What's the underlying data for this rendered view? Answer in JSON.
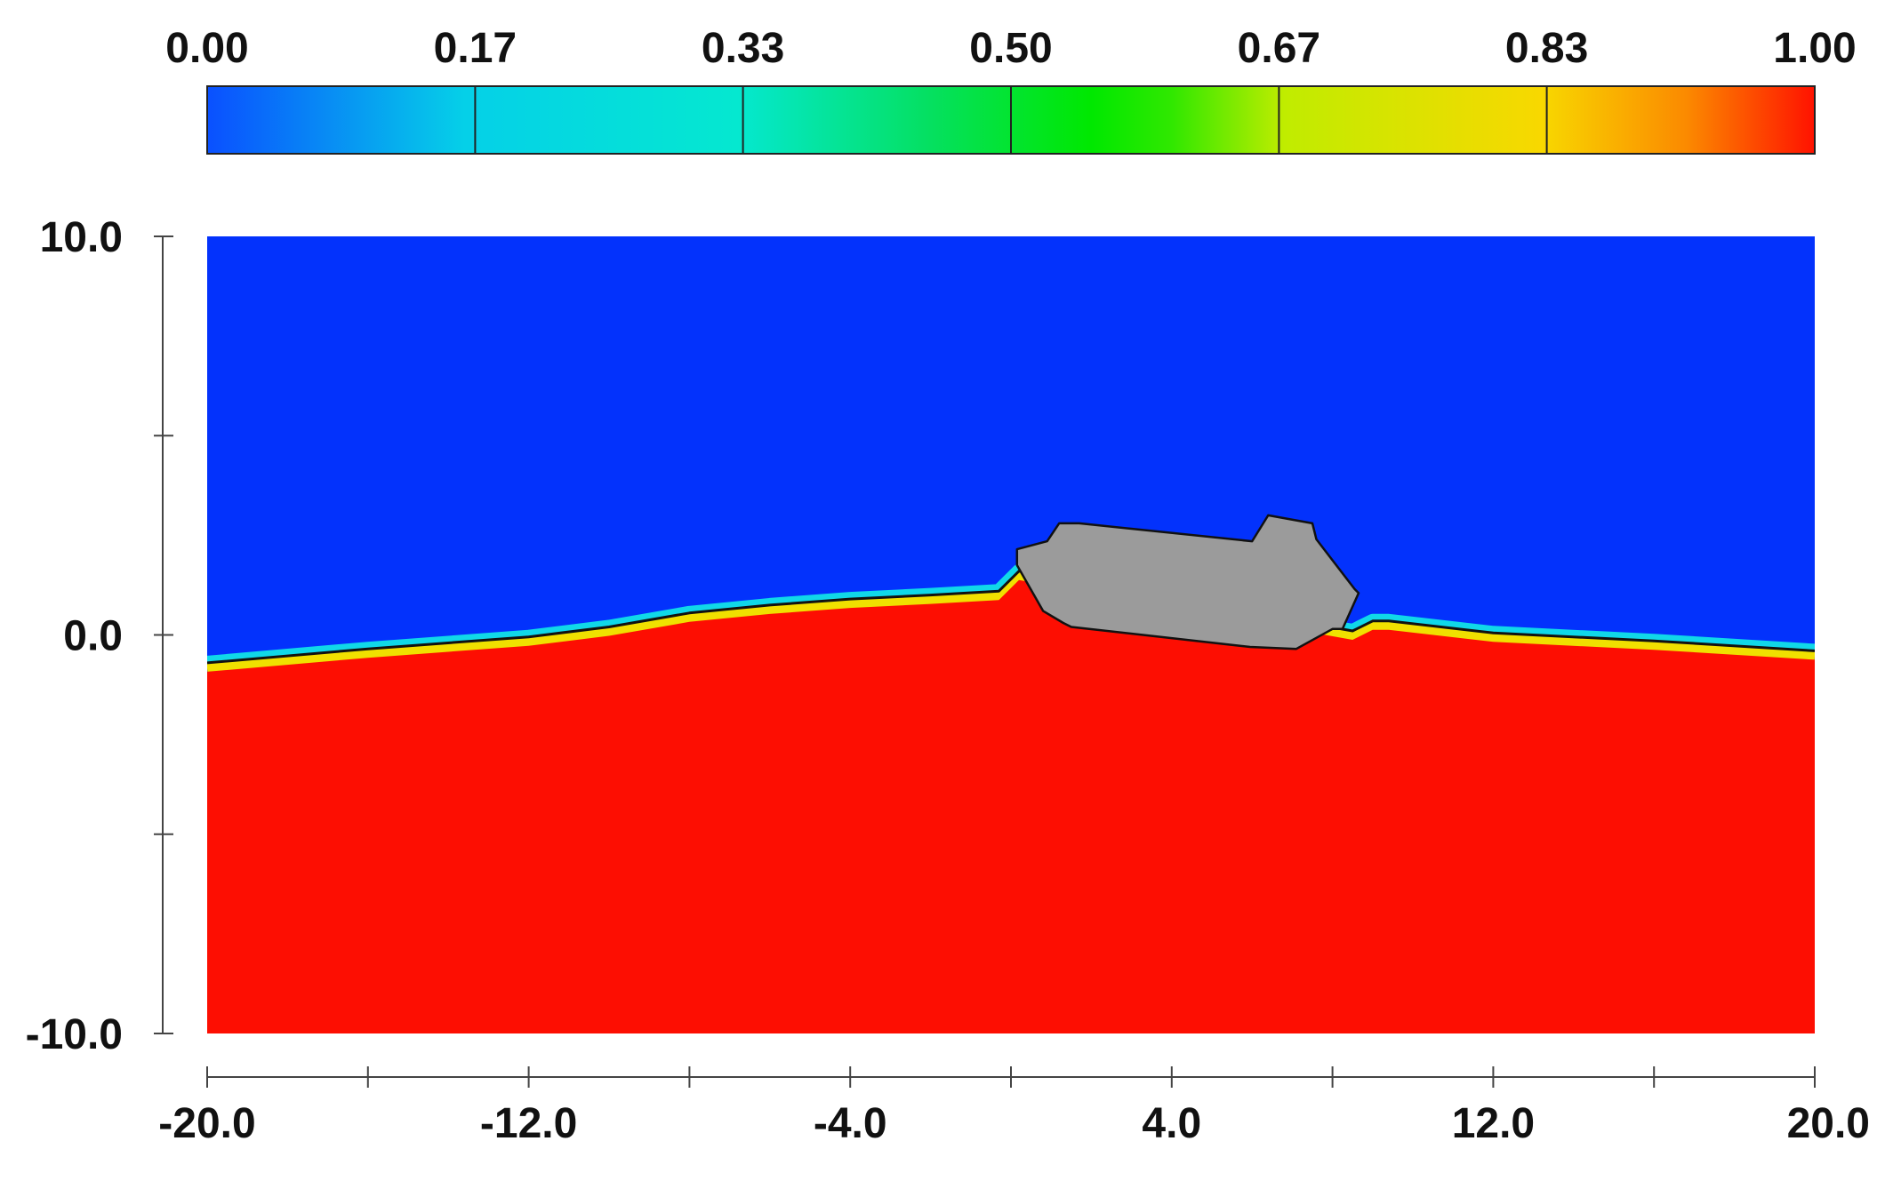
{
  "chart_data": {
    "type": "heatmap",
    "title": "",
    "xlabel": "",
    "ylabel": "",
    "xlim": [
      -20.0,
      20.0
    ],
    "ylim": [
      -10.0,
      10.0
    ],
    "x_ticks": [
      -20,
      -16,
      -12,
      -8,
      -4,
      0,
      4,
      8,
      12,
      16,
      20
    ],
    "x_tick_labels": [
      "-20.0",
      "",
      "-12.0",
      "",
      "-4.0",
      "",
      "4.0",
      "",
      "12.0",
      "",
      "20.0"
    ],
    "y_ticks": [
      10,
      5,
      0,
      -5,
      -10
    ],
    "y_tick_labels": [
      "10.0",
      "",
      "0.0",
      "",
      "-10.0"
    ],
    "colorbar": {
      "range": [
        0.0,
        1.0
      ],
      "tick_values": [
        0.0,
        0.1667,
        0.3333,
        0.5,
        0.6667,
        0.8333,
        1.0
      ],
      "tick_labels": [
        "0.00",
        "0.17",
        "0.33",
        "0.50",
        "0.67",
        "0.83",
        "1.00"
      ],
      "gradient_stops": [
        {
          "value": 0.0,
          "color": "#0a50ff"
        },
        {
          "value": 0.16,
          "color": "#05d0e8"
        },
        {
          "value": 0.33,
          "color": "#05e8d0"
        },
        {
          "value": 0.45,
          "color": "#05e060"
        },
        {
          "value": 0.55,
          "color": "#00e800"
        },
        {
          "value": 0.6,
          "color": "#30e800"
        },
        {
          "value": 0.67,
          "color": "#c0ec00"
        },
        {
          "value": 0.83,
          "color": "#f8d800"
        },
        {
          "value": 0.92,
          "color": "#fb8a00"
        },
        {
          "value": 1.0,
          "color": "#ff1200"
        }
      ]
    },
    "colors": {
      "air": "#0332fc",
      "water": "#fd0e02",
      "body": "#9b9b9b"
    },
    "free_surface": {
      "x": [
        -20,
        -16,
        -12,
        -10,
        -8,
        -6,
        -4,
        -2,
        -0.3,
        0.2,
        8.5,
        9.0,
        9.4,
        12,
        16,
        20
      ],
      "y": [
        -0.7,
        -0.35,
        -0.05,
        0.2,
        0.55,
        0.75,
        0.9,
        1.0,
        1.1,
        1.6,
        0.1,
        0.35,
        0.35,
        0.05,
        -0.15,
        -0.4
      ]
    },
    "body_outline": {
      "x": [
        0.15,
        0.15,
        0.8,
        1.3,
        1.5,
        5.5,
        5.95,
        7.1,
        8.0,
        8.25,
        8.65,
        8.55,
        7.6,
        7.5,
        6.4,
        6.0,
        1.7,
        1.2,
        0.9,
        0.15
      ],
      "y": [
        2.15,
        1.75,
        0.6,
        0.3,
        0.2,
        -0.25,
        -0.3,
        -0.35,
        0.15,
        0.15,
        1.05,
        1.15,
        2.4,
        2.8,
        3.0,
        2.35,
        2.8,
        2.8,
        2.35,
        2.15
      ]
    }
  }
}
